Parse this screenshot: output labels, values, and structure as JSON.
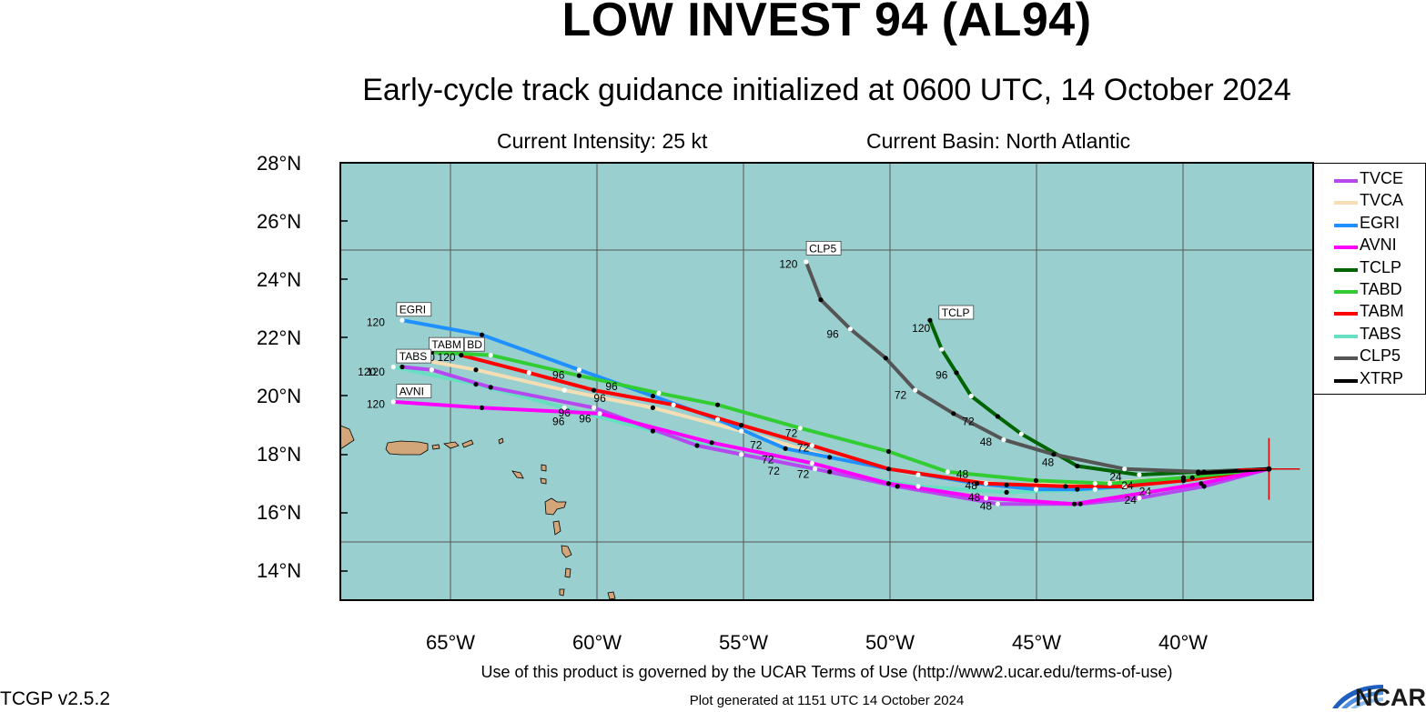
{
  "header": {
    "title": "LOW INVEST 94 (AL94)",
    "subtitle": "Early-cycle track guidance initialized at 0600 UTC, 14 October 2024",
    "intensity": "Current Intensity: 25 kt",
    "basin": "Current Basin: North Atlantic"
  },
  "axes": {
    "lat_ticks": [
      "28°N",
      "26°N",
      "24°N",
      "22°N",
      "20°N",
      "18°N",
      "16°N",
      "14°N"
    ],
    "lon_ticks": [
      "65°W",
      "60°W",
      "55°W",
      "50°W",
      "45°W",
      "40°W"
    ],
    "lat_range": [
      13,
      28
    ],
    "lon_range": [
      -68.6,
      -35.6
    ],
    "ocean_color": "#9acfcf"
  },
  "footer": {
    "terms": "Use of this product is governed by the UCAR Terms of Use (http://www2.ucar.edu/terms-of-use)",
    "generated": "Plot generated at 1151 UTC   14 October 2024",
    "version": "TCGP v2.5.2",
    "logo": "NCAR"
  },
  "storm": {
    "lon": -37.1,
    "lat": 17.5
  },
  "legend": [
    {
      "name": "TVCE",
      "color": "#b549f0"
    },
    {
      "name": "TVCA",
      "color": "#f5deb3"
    },
    {
      "name": "EGRI",
      "color": "#1e90ff"
    },
    {
      "name": "AVNI",
      "color": "#ff00ff"
    },
    {
      "name": "TCLP",
      "color": "#006400"
    },
    {
      "name": "TABD",
      "color": "#32cd32"
    },
    {
      "name": "TABM",
      "color": "#ff0000"
    },
    {
      "name": "TABS",
      "color": "#66e0c0"
    },
    {
      "name": "CLP5",
      "color": "#555555"
    },
    {
      "name": "XTRP",
      "color": "#000000"
    }
  ],
  "chart_data": {
    "type": "map",
    "series": [
      {
        "name": "TABS",
        "color": "#66e0c0",
        "points": [
          [
            -37.1,
            17.5
          ],
          [
            -40,
            17.1
          ],
          [
            -43,
            16.8
          ],
          [
            -46,
            16.7
          ],
          [
            -49,
            16.9
          ],
          [
            -52,
            17.4
          ],
          [
            -55,
            18.0
          ],
          [
            -58,
            18.8
          ],
          [
            -61,
            19.6
          ],
          [
            -64,
            20.4
          ],
          [
            -66.8,
            21.0
          ]
        ]
      },
      {
        "name": "TVCA",
        "color": "#f5deb3",
        "points": [
          [
            -37.1,
            17.5
          ],
          [
            -40,
            17.2
          ],
          [
            -43,
            17.0
          ],
          [
            -46,
            16.95
          ],
          [
            -49,
            17.3
          ],
          [
            -52,
            17.9
          ],
          [
            -55,
            18.8
          ],
          [
            -58,
            19.6
          ],
          [
            -61,
            20.2
          ],
          [
            -64,
            20.9
          ],
          [
            -65.6,
            21.2
          ]
        ]
      },
      {
        "name": "EGRI",
        "color": "#1e90ff",
        "points": [
          [
            -37.1,
            17.5
          ],
          [
            -39.7,
            17.2
          ],
          [
            -42,
            16.9
          ],
          [
            -43.6,
            16.8
          ],
          [
            -45,
            16.8
          ],
          [
            -47,
            17.0
          ],
          [
            -50,
            17.5
          ],
          [
            -53.5,
            18.2
          ],
          [
            -55.8,
            19.2
          ],
          [
            -58,
            20.0
          ],
          [
            -60.5,
            20.9
          ],
          [
            -63.8,
            22.1
          ],
          [
            -66.5,
            22.6
          ]
        ]
      },
      {
        "name": "TABM",
        "color": "#ff0000",
        "points": [
          [
            -37.1,
            17.5
          ],
          [
            -40,
            17.1
          ],
          [
            -42,
            16.9
          ],
          [
            -44,
            16.9
          ],
          [
            -46.7,
            17.0
          ],
          [
            -50,
            17.5
          ],
          [
            -52.6,
            18.3
          ],
          [
            -55,
            19.0
          ],
          [
            -57.3,
            19.7
          ],
          [
            -60,
            20.2
          ],
          [
            -62.2,
            20.8
          ],
          [
            -64.5,
            21.4
          ]
        ]
      },
      {
        "name": "TABD",
        "color": "#32cd32",
        "points": [
          [
            -37.1,
            17.5
          ],
          [
            -40,
            17.2
          ],
          [
            -42.5,
            17.0
          ],
          [
            -45,
            17.1
          ],
          [
            -48,
            17.4
          ],
          [
            -50,
            18.1
          ],
          [
            -53,
            18.9
          ],
          [
            -55.8,
            19.7
          ],
          [
            -57.8,
            20.1
          ],
          [
            -60.5,
            20.7
          ],
          [
            -63.5,
            21.4
          ],
          [
            -65.5,
            21.5
          ]
        ]
      },
      {
        "name": "TVCE",
        "color": "#b549f0",
        "points": [
          [
            -37.1,
            17.5
          ],
          [
            -39.3,
            16.9
          ],
          [
            -41.5,
            16.5
          ],
          [
            -43.5,
            16.3
          ],
          [
            -46.3,
            16.3
          ],
          [
            -49.7,
            16.9
          ],
          [
            -52.5,
            17.5
          ],
          [
            -56.5,
            18.3
          ],
          [
            -60,
            19.6
          ],
          [
            -63.5,
            20.3
          ],
          [
            -65.5,
            20.9
          ],
          [
            -66.5,
            21.0
          ]
        ]
      },
      {
        "name": "AVNI",
        "color": "#ff00ff",
        "points": [
          [
            -37.1,
            17.5
          ],
          [
            -39.4,
            17.0
          ],
          [
            -41.2,
            16.7
          ],
          [
            -43.7,
            16.3
          ],
          [
            -46.7,
            16.5
          ],
          [
            -50,
            17.0
          ],
          [
            -52.6,
            17.7
          ],
          [
            -56,
            18.4
          ],
          [
            -59.8,
            19.4
          ],
          [
            -63.8,
            19.6
          ],
          [
            -66.8,
            19.8
          ]
        ]
      },
      {
        "name": "TCLP",
        "color": "#006400",
        "points": [
          [
            -37.1,
            17.5
          ],
          [
            -39.5,
            17.4
          ],
          [
            -41.5,
            17.3
          ],
          [
            -43.6,
            17.6
          ],
          [
            -45.5,
            18.7
          ],
          [
            -46.3,
            19.3
          ],
          [
            -47.2,
            20.0
          ],
          [
            -47.7,
            20.8
          ],
          [
            -48.2,
            21.6
          ],
          [
            -48.6,
            22.6
          ]
        ]
      },
      {
        "name": "CLP5",
        "color": "#555555",
        "points": [
          [
            -37.1,
            17.5
          ],
          [
            -39.3,
            17.4
          ],
          [
            -42,
            17.5
          ],
          [
            -44.4,
            18.0
          ],
          [
            -46.1,
            18.5
          ],
          [
            -47.8,
            19.4
          ],
          [
            -49.1,
            20.2
          ],
          [
            -50.1,
            21.3
          ],
          [
            -51.3,
            22.3
          ],
          [
            -52.3,
            23.3
          ],
          [
            -52.8,
            24.6
          ]
        ]
      },
      {
        "name": "XTRP",
        "color": "#000000",
        "points": [
          [
            -37.1,
            17.5
          ],
          [
            -39.5,
            17.35
          ]
        ]
      }
    ],
    "hour_labels": [
      {
        "text": "24",
        "lon": -42.3,
        "lat": 17.1
      },
      {
        "text": "24",
        "lon": -41.9,
        "lat": 16.8
      },
      {
        "text": "24",
        "lon": -41.8,
        "lat": 16.3
      },
      {
        "text": "24",
        "lon": -41.3,
        "lat": 16.6
      },
      {
        "text": "48",
        "lon": -47.5,
        "lat": 17.2
      },
      {
        "text": "48",
        "lon": -47.2,
        "lat": 16.8
      },
      {
        "text": "48",
        "lon": -47.1,
        "lat": 16.4
      },
      {
        "text": "48",
        "lon": -46.7,
        "lat": 16.1
      },
      {
        "text": "48",
        "lon": -44.6,
        "lat": 17.6
      },
      {
        "text": "48",
        "lon": -46.7,
        "lat": 18.3
      },
      {
        "text": "72",
        "lon": -53.3,
        "lat": 18.6
      },
      {
        "text": "72",
        "lon": -54.5,
        "lat": 18.2
      },
      {
        "text": "72",
        "lon": -52.9,
        "lat": 18.1
      },
      {
        "text": "72",
        "lon": -54.1,
        "lat": 17.7
      },
      {
        "text": "72",
        "lon": -53.9,
        "lat": 17.3
      },
      {
        "text": "72",
        "lon": -52.9,
        "lat": 17.2
      },
      {
        "text": "72",
        "lon": -49.6,
        "lat": 19.9
      },
      {
        "text": "72",
        "lon": -47.3,
        "lat": 19.0
      },
      {
        "text": "96",
        "lon": -61.2,
        "lat": 20.6
      },
      {
        "text": "96",
        "lon": -59.4,
        "lat": 20.2
      },
      {
        "text": "96",
        "lon": -59.8,
        "lat": 19.8
      },
      {
        "text": "96",
        "lon": -61.0,
        "lat": 19.3
      },
      {
        "text": "96",
        "lon": -61.2,
        "lat": 19.0
      },
      {
        "text": "96",
        "lon": -60.3,
        "lat": 19.1
      },
      {
        "text": "96",
        "lon": -51.9,
        "lat": 22.0
      },
      {
        "text": "96",
        "lon": -48.2,
        "lat": 20.6
      },
      {
        "text": "120",
        "lon": -67.4,
        "lat": 22.4
      },
      {
        "text": "120",
        "lon": -65.7,
        "lat": 21.2
      },
      {
        "text": "120",
        "lon": -65.0,
        "lat": 21.2
      },
      {
        "text": "120",
        "lon": -67.7,
        "lat": 20.7
      },
      {
        "text": "120",
        "lon": -67.4,
        "lat": 20.7
      },
      {
        "text": "120",
        "lon": -67.4,
        "lat": 19.6
      },
      {
        "text": "120",
        "lon": -53.4,
        "lat": 24.4
      },
      {
        "text": "120",
        "lon": -48.9,
        "lat": 22.2
      }
    ],
    "track_tags": [
      {
        "text": "EGRI",
        "lon": -66.6,
        "lat": 22.8
      },
      {
        "text": "TABM",
        "lon": -65.5,
        "lat": 21.6
      },
      {
        "text": "BD",
        "lon": -64.3,
        "lat": 21.6
      },
      {
        "text": "TABS",
        "lon": -66.6,
        "lat": 21.2
      },
      {
        "text": "AVNI",
        "lon": -66.6,
        "lat": 20.0
      },
      {
        "text": "CLP5",
        "lon": -52.7,
        "lat": 24.9
      },
      {
        "text": "TCLP",
        "lon": -48.2,
        "lat": 22.7
      }
    ]
  }
}
